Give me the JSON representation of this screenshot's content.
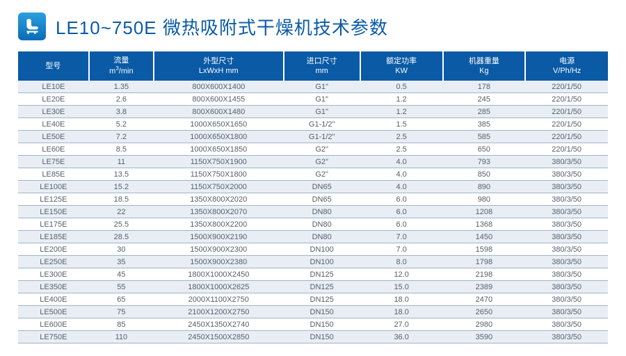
{
  "header": {
    "title": "LE10~750E 微热吸附式干燥机技术参数",
    "title_color": "#0a5aa6",
    "icon_name": "seat-icon"
  },
  "table": {
    "header_bg": "#0a5aa6",
    "header_fg": "#ffffff",
    "row_bg_even": "#e8eef4",
    "row_bg_odd": "#ffffff",
    "row_text_color": "#555e6b",
    "row_border_color": "#9fb4c9",
    "column_widths_pct": [
      12,
      11,
      22,
      13,
      14,
      14,
      14
    ],
    "columns": [
      {
        "line1": "型号",
        "line2": ""
      },
      {
        "line1": "流量",
        "line2": "m³/min"
      },
      {
        "line1": "外型尺寸",
        "line2": "LxWxH mm"
      },
      {
        "line1": "进口尺寸",
        "line2": "mm"
      },
      {
        "line1": "额定功率",
        "line2": "KW"
      },
      {
        "line1": "机器重量",
        "line2": "Kg"
      },
      {
        "line1": "电源",
        "line2": "V/Ph/Hz"
      }
    ],
    "rows": [
      [
        "LE10E",
        "1.35",
        "800X600X1400",
        "G1\"",
        "0.5",
        "178",
        "220/1/50"
      ],
      [
        "LE20E",
        "2.6",
        "800X600X1455",
        "G1\"",
        "1.2",
        "245",
        "220/1/50"
      ],
      [
        "LE30E",
        "3.8",
        "800X600X1480",
        "G1\"",
        "1.2",
        "285",
        "220/1/50"
      ],
      [
        "LE40E",
        "5.2",
        "1000X650X1650",
        "G1-1/2\"",
        "1.5",
        "385",
        "220/1/50"
      ],
      [
        "LE50E",
        "7.2",
        "1000X650X1800",
        "G1-1/2\"",
        "2.5",
        "585",
        "220/1/50"
      ],
      [
        "LE60E",
        "8.5",
        "1000X650X1850",
        "G2\"",
        "2.5",
        "650",
        "220/1/50"
      ],
      [
        "LE75E",
        "11",
        "1150X750X1900",
        "G2\"",
        "4.0",
        "793",
        "380/3/50"
      ],
      [
        "LE85E",
        "13.5",
        "1150X750X1800",
        "G2\"",
        "4.0",
        "850",
        "380/3/50"
      ],
      [
        "LE100E",
        "15.2",
        "1150X750X2000",
        "DN65",
        "4.0",
        "890",
        "380/3/50"
      ],
      [
        "LE125E",
        "18.5",
        "1350X800X2020",
        "DN65",
        "6.0",
        "980",
        "380/3/50"
      ],
      [
        "LE150E",
        "22",
        "1350X800X2070",
        "DN80",
        "6.0",
        "1208",
        "380/3/50"
      ],
      [
        "LE175E",
        "25.5",
        "1350X800X2200",
        "DN80",
        "6.0",
        "1368",
        "380/3/50"
      ],
      [
        "LE185E",
        "28.5",
        "1500X900X2190",
        "DN80",
        "7.0",
        "1450",
        "380/3/50"
      ],
      [
        "LE200E",
        "30",
        "1500X900X2300",
        "DN100",
        "7.0",
        "1598",
        "380/3/50"
      ],
      [
        "LE250E",
        "35",
        "1500X900X2380",
        "DN100",
        "8.0",
        "1798",
        "380/3/50"
      ],
      [
        "LE300E",
        "45",
        "1800X1000X2450",
        "DN125",
        "12.0",
        "2198",
        "380/3/50"
      ],
      [
        "LE350E",
        "55",
        "1800X1000X2625",
        "DN125",
        "15.0",
        "2389",
        "380/3/50"
      ],
      [
        "LE400E",
        "65",
        "2000X1100X2750",
        "DN125",
        "18.0",
        "2470",
        "380/3/50"
      ],
      [
        "LE500E",
        "75",
        "2100X1200X2750",
        "DN150",
        "18.0",
        "2650",
        "380/3/50"
      ],
      [
        "LE600E",
        "85",
        "2450X1350X2740",
        "DN150",
        "27.0",
        "2980",
        "380/3/50"
      ],
      [
        "LE750E",
        "110",
        "2450X1500X2850",
        "DN150",
        "36.0",
        "3590",
        "380/3/50"
      ]
    ]
  }
}
